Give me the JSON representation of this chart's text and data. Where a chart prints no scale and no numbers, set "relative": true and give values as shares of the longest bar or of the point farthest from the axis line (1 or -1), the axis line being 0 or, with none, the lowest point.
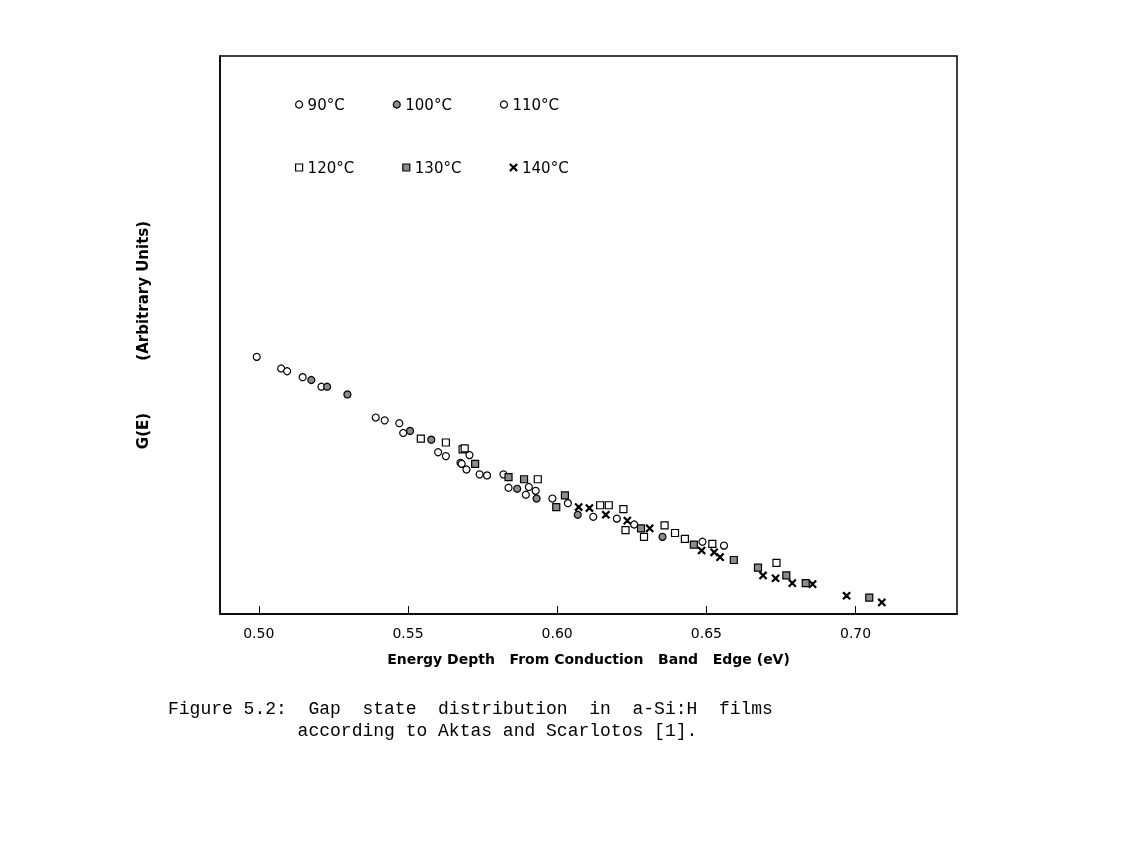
{
  "chart_data": {
    "type": "scatter",
    "relative": true,
    "xlabel": "Energy Depth   From Conduction   Band   Edge (eV)",
    "ylabel": "G(E)          (Arbitrary Units)",
    "xlim": [
      0.487,
      0.734
    ],
    "xticks": [
      {
        "value": 0.5,
        "label": "0.50"
      },
      {
        "value": 0.55,
        "label": "0.55"
      },
      {
        "value": 0.6,
        "label": "0.60"
      },
      {
        "value": 0.65,
        "label": "0.65"
      },
      {
        "value": 0.7,
        "label": "0.70"
      }
    ],
    "legend": "top left",
    "grid": false,
    "annotations": [
      "Figure 5.2:  Gap  state  distribution  in  a-Si:H  films\n            according to Aktas and Scarlotos [1]."
    ],
    "series": [
      {
        "name": "90°C",
        "color": "#ffffff",
        "marker": "circle",
        "x": [
          0.4993,
          0.5075,
          0.5095,
          0.5147,
          0.521,
          0.5422,
          0.5484,
          0.5601,
          0.5627,
          0.5676,
          0.568,
          0.5696,
          0.574,
          0.5837,
          0.5895
        ],
        "values": [
          1.0,
          0.955,
          0.944,
          0.921,
          0.884,
          0.753,
          0.704,
          0.629,
          0.614,
          0.588,
          0.584,
          0.562,
          0.543,
          0.491,
          0.464
        ]
      },
      {
        "name": "100°C",
        "color": "#8c8c8c",
        "marker": "circle",
        "x": [
          0.5176,
          0.5229,
          0.5297,
          0.5507,
          0.5578,
          0.5866,
          0.5931,
          0.6069,
          0.6353
        ],
        "values": [
          0.91,
          0.884,
          0.854,
          0.712,
          0.678,
          0.487,
          0.449,
          0.386,
          0.3
        ]
      },
      {
        "name": "110°C",
        "color": "#ffffff",
        "marker": "circle",
        "x": [
          0.5392,
          0.5471,
          0.5706,
          0.5765,
          0.582,
          0.5905,
          0.5928,
          0.5984,
          0.6036,
          0.6121,
          0.62,
          0.6258,
          0.6487,
          0.6559
        ],
        "values": [
          0.764,
          0.742,
          0.618,
          0.539,
          0.543,
          0.494,
          0.479,
          0.449,
          0.431,
          0.378,
          0.371,
          0.348,
          0.281,
          0.266
        ]
      },
      {
        "name": "120°C",
        "color": "#ffffff",
        "marker": "square",
        "x": [
          0.5543,
          0.5627,
          0.5683,
          0.569,
          0.5935,
          0.6144,
          0.6173,
          0.6222,
          0.6229,
          0.6291,
          0.636,
          0.6395,
          0.6428,
          0.652,
          0.6735
        ],
        "values": [
          0.682,
          0.667,
          0.64,
          0.644,
          0.524,
          0.423,
          0.423,
          0.408,
          0.326,
          0.3,
          0.345,
          0.315,
          0.292,
          0.273,
          0.199
        ]
      },
      {
        "name": "130°C",
        "color": "#8c8c8c",
        "marker": "square",
        "x": [
          0.5725,
          0.5837,
          0.5889,
          0.6026,
          0.5997,
          0.6281,
          0.6458,
          0.6592,
          0.6673,
          0.6768,
          0.6833,
          0.7046
        ],
        "values": [
          0.584,
          0.532,
          0.524,
          0.461,
          0.416,
          0.333,
          0.27,
          0.21,
          0.18,
          0.15,
          0.12,
          0.064
        ]
      },
      {
        "name": "140°C",
        "color": "#000000",
        "marker": "cross",
        "x": [
          0.6072,
          0.6108,
          0.6163,
          0.6235,
          0.631,
          0.6484,
          0.6526,
          0.6546,
          0.669,
          0.6732,
          0.6788,
          0.6856,
          0.697,
          0.7088
        ],
        "values": [
          0.416,
          0.412,
          0.386,
          0.363,
          0.333,
          0.247,
          0.24,
          0.221,
          0.15,
          0.139,
          0.12,
          0.116,
          0.071,
          0.045
        ]
      }
    ]
  }
}
